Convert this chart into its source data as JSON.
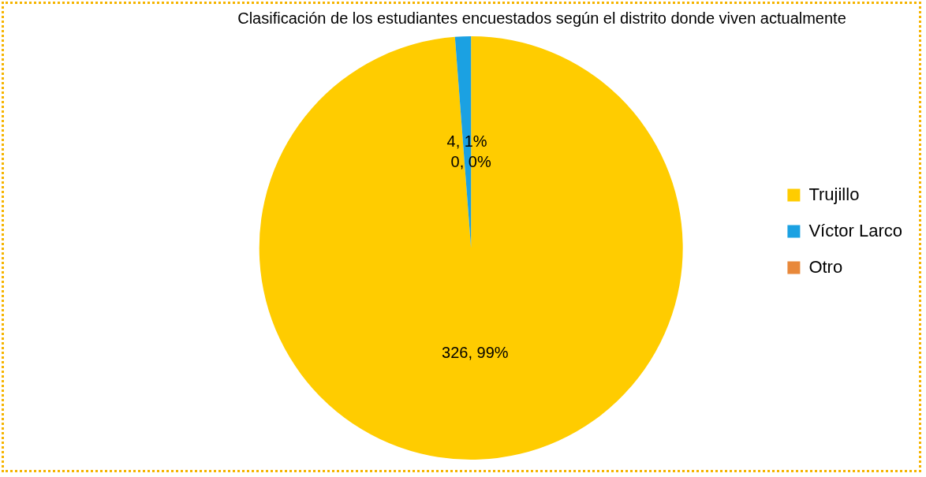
{
  "chart_data": {
    "type": "pie",
    "title": "Clasificación de los estudiantes encuestados según el distrito donde viven actualmente",
    "categories": [
      "Trujillo",
      "Víctor Larco",
      "Otro"
    ],
    "values": [
      326,
      4,
      0
    ],
    "value_labels": [
      "326, 99%",
      "4, 1%",
      "0, 0%"
    ],
    "colors": [
      "#ffcc00",
      "#1ba1e2",
      "#e8883a"
    ],
    "legend": "right"
  }
}
